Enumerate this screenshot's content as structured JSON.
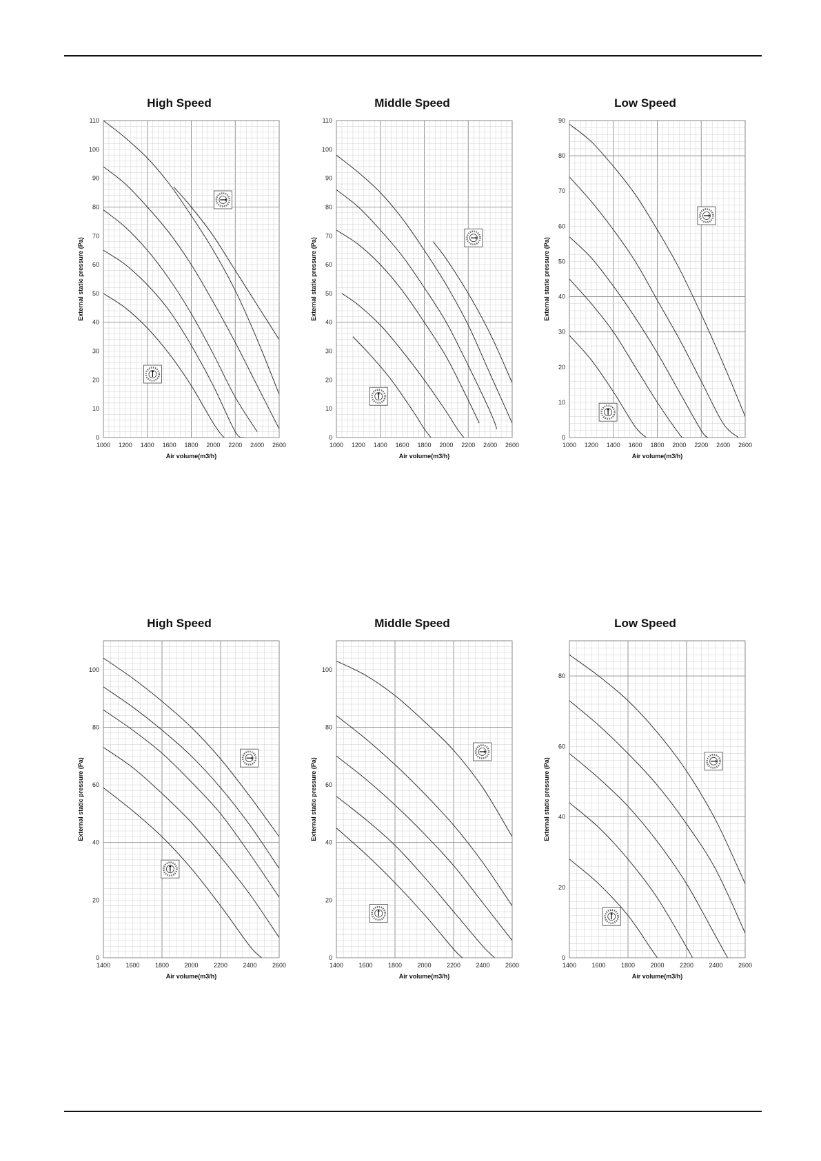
{
  "page": {
    "background": "#ffffff",
    "rule_color": "#111111",
    "curve_color": "#333333",
    "grid_minor": "#cfcfcf",
    "grid_major": "#8a8a8a"
  },
  "chart_data": [
    {
      "type": "line",
      "title": "High Speed",
      "xlabel": "Air volume(m3/h)",
      "ylabel": "External static pressure (Pa)",
      "xlim": [
        1000,
        2600
      ],
      "ylim": [
        0,
        110
      ],
      "xticks": [
        1000,
        1200,
        1400,
        1600,
        1800,
        2000,
        2200,
        2400,
        2600
      ],
      "yticks": [
        0,
        10,
        20,
        30,
        40,
        50,
        60,
        70,
        80,
        90,
        100,
        110
      ],
      "grid": true,
      "switch_icons": [
        "dial-switch-icon",
        "dial-switch-icon"
      ],
      "series": [
        {
          "x": [
            1000,
            1200,
            1400,
            1600,
            1800,
            2000,
            2100,
            2160
          ],
          "y": [
            50,
            45,
            38,
            29,
            18,
            5,
            -2,
            0
          ]
        },
        {
          "x": [
            1000,
            1200,
            1400,
            1600,
            1800,
            2000,
            2200,
            2280
          ],
          "y": [
            65,
            60,
            53,
            44,
            32,
            18,
            2,
            0
          ]
        },
        {
          "x": [
            1000,
            1200,
            1400,
            1600,
            1800,
            2000,
            2200,
            2400
          ],
          "y": [
            79,
            73,
            65,
            55,
            43,
            29,
            14,
            2
          ]
        },
        {
          "x": [
            1000,
            1200,
            1400,
            1600,
            1800,
            2000,
            2200,
            2400,
            2600
          ],
          "y": [
            94,
            88,
            80,
            71,
            60,
            47,
            33,
            18,
            3
          ]
        },
        {
          "x": [
            1000,
            1200,
            1400,
            1600,
            1800,
            2000,
            2200,
            2400,
            2600
          ],
          "y": [
            110,
            104,
            97,
            88,
            77,
            65,
            51,
            34,
            15
          ]
        },
        {
          "x": [
            1640,
            1800,
            2000,
            2200,
            2400,
            2600
          ],
          "y": [
            87,
            80,
            70,
            58,
            46,
            34
          ]
        }
      ]
    },
    {
      "type": "line",
      "title": "Middle Speed",
      "xlabel": "Air volume(m3/h)",
      "ylabel": "External static pressure (Pa)",
      "xlim": [
        1000,
        2600
      ],
      "ylim": [
        0,
        110
      ],
      "xticks": [
        1000,
        1200,
        1400,
        1600,
        1800,
        2000,
        2200,
        2400,
        2600
      ],
      "yticks": [
        0,
        10,
        20,
        30,
        40,
        50,
        60,
        70,
        80,
        90,
        100,
        110
      ],
      "grid": true,
      "switch_icons": [
        "dial-switch-icon",
        "dial-switch-icon"
      ],
      "series": [
        {
          "x": [
            1150,
            1300,
            1500,
            1700,
            1800,
            1860
          ],
          "y": [
            35,
            29,
            20,
            9,
            3,
            0
          ]
        },
        {
          "x": [
            1050,
            1200,
            1400,
            1600,
            1800,
            2000,
            2100,
            2160
          ],
          "y": [
            50,
            46,
            39,
            30,
            20,
            9,
            3,
            0
          ]
        },
        {
          "x": [
            1000,
            1200,
            1400,
            1600,
            1800,
            2000,
            2200,
            2300
          ],
          "y": [
            72,
            67,
            60,
            51,
            40,
            28,
            13,
            5
          ]
        },
        {
          "x": [
            1000,
            1200,
            1400,
            1600,
            1800,
            2000,
            2200,
            2400,
            2460
          ],
          "y": [
            86,
            80,
            72,
            63,
            52,
            40,
            25,
            9,
            3
          ]
        },
        {
          "x": [
            1000,
            1200,
            1400,
            1600,
            1800,
            2000,
            2200,
            2400,
            2600
          ],
          "y": [
            98,
            92,
            85,
            76,
            65,
            53,
            39,
            22,
            5
          ]
        },
        {
          "x": [
            1880,
            2000,
            2200,
            2400,
            2600
          ],
          "y": [
            68,
            62,
            50,
            36,
            19
          ]
        }
      ]
    },
    {
      "type": "line",
      "title": "Low Speed",
      "xlabel": "Air volume(m3/h)",
      "ylabel": "External static pressure (Pa)",
      "xlim": [
        1000,
        2600
      ],
      "ylim": [
        0,
        90
      ],
      "xticks": [
        1000,
        1200,
        1400,
        1600,
        1800,
        2000,
        2200,
        2400,
        2600
      ],
      "yticks": [
        0,
        10,
        20,
        30,
        40,
        50,
        60,
        70,
        80,
        90
      ],
      "grid": true,
      "switch_icons": [
        "dial-switch-icon",
        "dial-switch-icon"
      ],
      "series": [
        {
          "x": [
            1000,
            1200,
            1400,
            1600,
            1700
          ],
          "y": [
            29,
            22,
            13,
            3,
            0
          ]
        },
        {
          "x": [
            1000,
            1200,
            1400,
            1600,
            1800,
            2000,
            2040
          ],
          "y": [
            45,
            38,
            30,
            20,
            10,
            1,
            0
          ]
        },
        {
          "x": [
            1000,
            1200,
            1400,
            1600,
            1800,
            2000,
            2200,
            2260
          ],
          "y": [
            57,
            51,
            43,
            34,
            24,
            13,
            2,
            0
          ]
        },
        {
          "x": [
            1000,
            1200,
            1400,
            1600,
            1800,
            2000,
            2200,
            2400,
            2540
          ],
          "y": [
            74,
            67,
            59,
            50,
            39,
            28,
            16,
            4,
            0
          ]
        },
        {
          "x": [
            1000,
            1200,
            1400,
            1600,
            1800,
            2000,
            2200,
            2400,
            2600
          ],
          "y": [
            89,
            84,
            77,
            69,
            59,
            48,
            35,
            21,
            6
          ]
        }
      ]
    },
    {
      "type": "line",
      "title": "High Speed",
      "xlabel": "Air volume(m3/h)",
      "ylabel": "External static pressure (Pa)",
      "xlim": [
        1400,
        2600
      ],
      "ylim": [
        0,
        110
      ],
      "xticks": [
        1400,
        1600,
        1800,
        2000,
        2200,
        2400,
        2600
      ],
      "yticks": [
        0,
        20,
        40,
        60,
        80,
        100
      ],
      "grid": true,
      "switch_icons": [
        "dial-switch-icon",
        "dial-switch-icon"
      ],
      "series": [
        {
          "x": [
            1400,
            1600,
            1800,
            2000,
            2200,
            2400,
            2480
          ],
          "y": [
            59,
            51,
            42,
            31,
            18,
            4,
            0
          ]
        },
        {
          "x": [
            1400,
            1600,
            1800,
            2000,
            2200,
            2400,
            2600
          ],
          "y": [
            73,
            66,
            57,
            47,
            35,
            22,
            7
          ]
        },
        {
          "x": [
            1400,
            1600,
            1800,
            2000,
            2200,
            2400,
            2600
          ],
          "y": [
            86,
            79,
            71,
            61,
            50,
            36,
            21
          ]
        },
        {
          "x": [
            1400,
            1600,
            1800,
            2000,
            2200,
            2400,
            2600
          ],
          "y": [
            94,
            87,
            79,
            70,
            59,
            46,
            31
          ]
        },
        {
          "x": [
            1400,
            1600,
            1800,
            2000,
            2200,
            2400,
            2600
          ],
          "y": [
            104,
            97,
            89,
            80,
            69,
            56,
            42
          ]
        }
      ]
    },
    {
      "type": "line",
      "title": "Middle Speed",
      "xlabel": "Air volume(m3/h)",
      "ylabel": "External static pressure (Pa)",
      "xlim": [
        1400,
        2600
      ],
      "ylim": [
        0,
        110
      ],
      "xticks": [
        1400,
        1600,
        1800,
        2000,
        2200,
        2400,
        2600
      ],
      "yticks": [
        0,
        20,
        40,
        60,
        80,
        100
      ],
      "grid": true,
      "switch_icons": [
        "dial-switch-icon",
        "dial-switch-icon"
      ],
      "series": [
        {
          "x": [
            1400,
            1600,
            1800,
            2000,
            2200,
            2260
          ],
          "y": [
            45,
            36,
            26,
            15,
            3,
            0
          ]
        },
        {
          "x": [
            1400,
            1600,
            1800,
            2000,
            2200,
            2400,
            2480
          ],
          "y": [
            56,
            48,
            39,
            28,
            16,
            4,
            0
          ]
        },
        {
          "x": [
            1400,
            1600,
            1800,
            2000,
            2200,
            2400,
            2600
          ],
          "y": [
            70,
            62,
            53,
            43,
            32,
            19,
            6
          ]
        },
        {
          "x": [
            1400,
            1600,
            1800,
            2000,
            2200,
            2400,
            2600
          ],
          "y": [
            84,
            76,
            67,
            57,
            46,
            33,
            18
          ]
        },
        {
          "x": [
            1400,
            1600,
            1800,
            2000,
            2200,
            2400,
            2600
          ],
          "y": [
            103,
            98,
            91,
            82,
            72,
            59,
            42
          ]
        }
      ]
    },
    {
      "type": "line",
      "title": "Low Speed",
      "xlabel": "Air volume(m3/h)",
      "ylabel": "External static pressure (Pa)",
      "xlim": [
        1400,
        2600
      ],
      "ylim": [
        0,
        90
      ],
      "xticks": [
        1400,
        1600,
        1800,
        2000,
        2200,
        2400,
        2600
      ],
      "yticks": [
        0,
        20,
        40,
        60,
        80
      ],
      "grid": true,
      "switch_icons": [
        "dial-switch-icon",
        "dial-switch-icon"
      ],
      "series": [
        {
          "x": [
            1400,
            1600,
            1800,
            1950,
            2000
          ],
          "y": [
            28,
            21,
            12,
            3,
            0
          ]
        },
        {
          "x": [
            1400,
            1600,
            1800,
            2000,
            2200,
            2240
          ],
          "y": [
            44,
            37,
            28,
            17,
            3,
            0
          ]
        },
        {
          "x": [
            1400,
            1600,
            1800,
            2000,
            2200,
            2400,
            2480
          ],
          "y": [
            58,
            51,
            43,
            33,
            21,
            6,
            0
          ]
        },
        {
          "x": [
            1400,
            1600,
            1800,
            2000,
            2200,
            2400,
            2600
          ],
          "y": [
            73,
            66,
            58,
            49,
            38,
            25,
            7
          ]
        },
        {
          "x": [
            1400,
            1600,
            1800,
            2000,
            2200,
            2400,
            2600
          ],
          "y": [
            86,
            80,
            73,
            64,
            53,
            39,
            21
          ]
        }
      ]
    }
  ]
}
